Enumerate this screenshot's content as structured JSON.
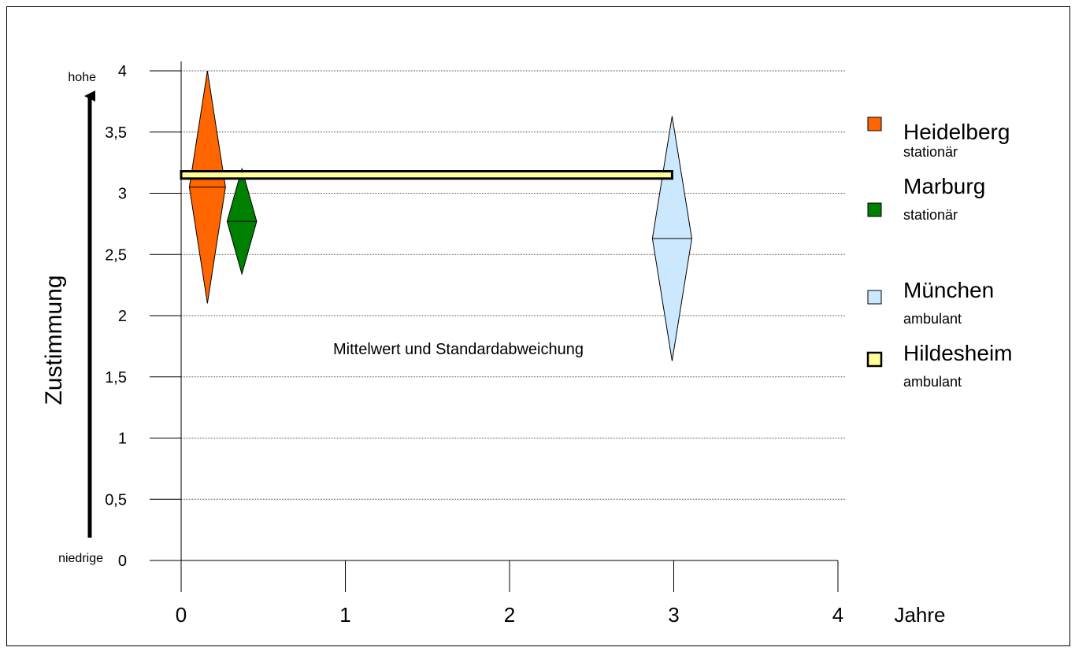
{
  "chart_data": {
    "type": "other",
    "title": "",
    "annotation": "Mittelwert und Standardabweichung",
    "xlabel": "Jahre",
    "ylabel": "Zustimmung",
    "y_top_label": "hohe",
    "y_bottom_label": "niedrige",
    "xlim": [
      0,
      4
    ],
    "ylim": [
      0,
      4
    ],
    "x_ticks": [
      "0",
      "1",
      "2",
      "3",
      "4"
    ],
    "x_tick_values": [
      0,
      1,
      2,
      3,
      4
    ],
    "y_ticks": [
      "0",
      "0,5",
      "1",
      "1,5",
      "2",
      "2,5",
      "3",
      "3,5",
      "4"
    ],
    "y_tick_values": [
      0,
      0.5,
      1,
      1.5,
      2,
      2.5,
      3,
      3.5,
      4
    ],
    "grid": true,
    "legend_position": "right",
    "series": [
      {
        "name": "Heidelberg",
        "note": "stationär",
        "shape": "diamond",
        "x": 0.16,
        "x_half_width": 0.11,
        "mean": 3.05,
        "sd": 0.95,
        "color": "#ff6600"
      },
      {
        "name": "Marburg",
        "note": "stationär",
        "shape": "diamond",
        "x": 0.37,
        "x_half_width": 0.09,
        "mean": 2.77,
        "sd": 0.43,
        "color": "#008000"
      },
      {
        "name": "München",
        "note": "ambulant",
        "shape": "diamond",
        "x": 2.99,
        "x_half_width": 0.12,
        "mean": 2.63,
        "sd": 1.0,
        "color": "#cce8ff"
      },
      {
        "name": "Hildesheim",
        "note": "ambulant",
        "shape": "bar",
        "x_start": 0.0,
        "x_end": 2.99,
        "mean": 3.15,
        "sd": 0.03,
        "color": "#ffff99"
      }
    ]
  }
}
